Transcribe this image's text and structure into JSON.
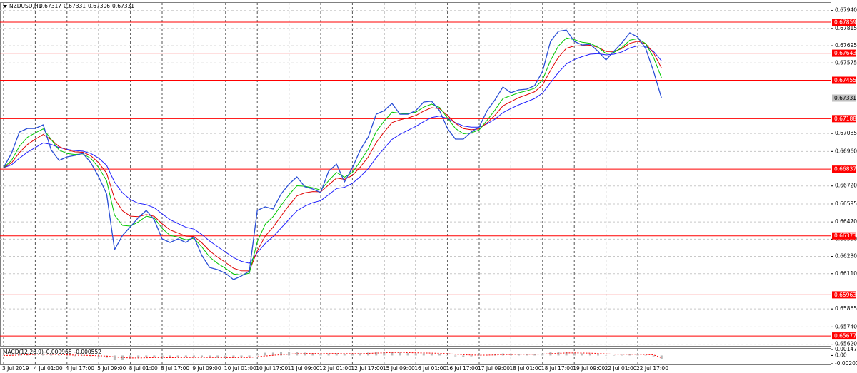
{
  "chart_data": {
    "type": "line",
    "symbol": "NZDUSD,H1",
    "ohlc": [
      0.67317,
      0.67331,
      0.67306,
      0.67331
    ],
    "categories": [
      "3 Jul 2019",
      null,
      null,
      null,
      "4 Jul 01:00",
      null,
      null,
      null,
      "4 Jul 17:00",
      null,
      null,
      null,
      "5 Jul 09:00",
      null,
      null,
      null,
      "8 Jul 01:00",
      null,
      null,
      null,
      "8 Jul 17:00",
      null,
      null,
      null,
      "9 Jul 09:00",
      null,
      null,
      null,
      "10 Jul 01:00",
      null,
      null,
      null,
      "10 Jul 17:00",
      null,
      null,
      null,
      "11 Jul 09:00",
      null,
      null,
      null,
      "12 Jul 01:00",
      null,
      null,
      null,
      "12 Jul 17:00",
      null,
      null,
      null,
      "15 Jul 09:00",
      null,
      null,
      null,
      "16 Jul 01:00",
      null,
      null,
      null,
      "16 Jul 17:00",
      null,
      null,
      null,
      "17 Jul 09:00",
      null,
      null,
      null,
      "18 Jul 01:00",
      null,
      null,
      null,
      "18 Jul 17:00",
      null,
      null,
      null,
      "19 Jul 09:00",
      null,
      null,
      null,
      "22 Jul 01:00",
      null,
      null,
      null,
      "22 Jul 17:00",
      null,
      null,
      null
    ],
    "series": [
      {
        "color": "#2a4fd6",
        "width": 1.3,
        "values": [
          0.66847,
          0.66947,
          0.67095,
          0.6712,
          0.6712,
          0.67145,
          0.66971,
          0.66897,
          0.66922,
          0.66932,
          0.66947,
          0.66882,
          0.66783,
          0.66664,
          0.66277,
          0.66376,
          0.66436,
          0.665,
          0.6655,
          0.66485,
          0.66352,
          0.66327,
          0.66352,
          0.66327,
          0.66366,
          0.66237,
          0.66153,
          0.66138,
          0.66113,
          0.66069,
          0.66094,
          0.66128,
          0.6655,
          0.66575,
          0.6656,
          0.66664,
          0.66733,
          0.66783,
          0.66714,
          0.66699,
          0.66674,
          0.66823,
          0.66872,
          0.66748,
          0.66847,
          0.66971,
          0.67061,
          0.67219,
          0.67244,
          0.67294,
          0.67219,
          0.67219,
          0.67244,
          0.67304,
          0.67309,
          0.67244,
          0.6712,
          0.67046,
          0.67046,
          0.67095,
          0.6713,
          0.67244,
          0.67319,
          0.67408,
          0.67368,
          0.67388,
          0.67393,
          0.67418,
          0.67517,
          0.67725,
          0.67795,
          0.67804,
          0.67725,
          0.677,
          0.67705,
          0.67656,
          0.67596,
          0.67656,
          0.67715,
          0.67785,
          0.67755,
          0.67676,
          0.67517,
          0.67331
        ]
      },
      {
        "color": "#00c800",
        "width": 1,
        "values": [
          0.66847,
          0.66897,
          0.66996,
          0.67058,
          0.67089,
          0.67117,
          0.67044,
          0.6697,
          0.66946,
          0.66939,
          0.66943,
          0.66912,
          0.66848,
          0.66756,
          0.66517,
          0.66446,
          0.66441,
          0.6647,
          0.6651,
          0.66498,
          0.66425,
          0.66376,
          0.66364,
          0.66345,
          0.66356,
          0.66296,
          0.66225,
          0.66181,
          0.66147,
          0.66108,
          0.66101,
          0.66114,
          0.66332,
          0.66454,
          0.66507,
          0.66585,
          0.66659,
          0.66721,
          0.66718,
          0.66708,
          0.66691,
          0.66757,
          0.66814,
          0.66781,
          0.66814,
          0.66892,
          0.66977,
          0.67098,
          0.67171,
          0.67233,
          0.67226,
          0.67222,
          0.67233,
          0.67268,
          0.67289,
          0.67266,
          0.67193,
          0.6712,
          0.67083,
          0.67089,
          0.6711,
          0.67177,
          0.67248,
          0.67328,
          0.67348,
          0.67368,
          0.67381,
          0.67399,
          0.67458,
          0.67592,
          0.67693,
          0.67749,
          0.67737,
          0.67719,
          0.67712,
          0.67684,
          0.6764,
          0.67648,
          0.67682,
          0.67733,
          0.67744,
          0.6771,
          0.67613,
          0.67472
        ]
      },
      {
        "color": "#e00000",
        "width": 1,
        "values": [
          0.66847,
          0.6688,
          0.66952,
          0.67008,
          0.67045,
          0.67078,
          0.67042,
          0.66994,
          0.6697,
          0.66957,
          0.66954,
          0.6693,
          0.66881,
          0.66809,
          0.66632,
          0.66547,
          0.6651,
          0.66507,
          0.66521,
          0.66509,
          0.66457,
          0.66414,
          0.66393,
          0.66371,
          0.66369,
          0.66325,
          0.66268,
          0.66225,
          0.66188,
          0.66148,
          0.6613,
          0.66129,
          0.66269,
          0.66371,
          0.66434,
          0.66511,
          0.66585,
          0.66651,
          0.66672,
          0.66681,
          0.66679,
          0.66727,
          0.66775,
          0.66766,
          0.66793,
          0.66852,
          0.66922,
          0.67021,
          0.67095,
          0.67161,
          0.6718,
          0.67193,
          0.6721,
          0.67241,
          0.67264,
          0.67257,
          0.67211,
          0.67156,
          0.67119,
          0.67111,
          0.67117,
          0.67159,
          0.67212,
          0.67277,
          0.67307,
          0.67334,
          0.67354,
          0.67375,
          0.67422,
          0.67523,
          0.67614,
          0.67677,
          0.67693,
          0.67695,
          0.67698,
          0.67684,
          0.67655,
          0.67655,
          0.67675,
          0.67712,
          0.67726,
          0.67709,
          0.67645,
          0.6754
        ]
      },
      {
        "color": "#2020ff",
        "width": 1,
        "values": [
          0.66847,
          0.66867,
          0.66913,
          0.66954,
          0.66987,
          0.67019,
          0.67009,
          0.66987,
          0.66974,
          0.66966,
          0.66962,
          0.66946,
          0.66913,
          0.66863,
          0.66746,
          0.66672,
          0.66625,
          0.666,
          0.6659,
          0.66569,
          0.66526,
          0.66486,
          0.66459,
          0.66433,
          0.6642,
          0.66383,
          0.66337,
          0.66297,
          0.6626,
          0.66222,
          0.66196,
          0.66182,
          0.66256,
          0.6632,
          0.66368,
          0.66427,
          0.66488,
          0.66547,
          0.6658,
          0.66604,
          0.66618,
          0.66659,
          0.66702,
          0.66711,
          0.66738,
          0.66785,
          0.6684,
          0.66916,
          0.66982,
          0.67044,
          0.67079,
          0.67107,
          0.67134,
          0.67168,
          0.67196,
          0.67206,
          0.67189,
          0.6716,
          0.67137,
          0.67129,
          0.67129,
          0.67152,
          0.67185,
          0.6723,
          0.67258,
          0.67284,
          0.67306,
          0.67328,
          0.67366,
          0.67438,
          0.67509,
          0.67568,
          0.67599,
          0.67619,
          0.67636,
          0.6764,
          0.67631,
          0.67636,
          0.67652,
          0.67679,
          0.67694,
          0.6769,
          0.67655,
          0.6759
        ]
      }
    ],
    "ylim": [
      0.65608,
      0.67993
    ],
    "yticks": [
      {
        "value": 0.6794,
        "label": "0.67940"
      },
      0.67815,
      0.67695,
      0.67575,
      0.67085,
      {
        "value": 0.6696,
        "label": "0.66960"
      },
      {
        "value": 0.6672,
        "label": "0.66720"
      },
      0.66595,
      {
        "value": 0.6647,
        "label": "0.66470"
      },
      {
        "value": 0.6635,
        "label": "0.66350"
      },
      {
        "value": 0.6623,
        "label": "0.66230"
      },
      {
        "value": 0.6611,
        "label": "0.66110"
      },
      0.65865,
      {
        "value": 0.6574,
        "label": "0.65740"
      },
      {
        "value": 0.6562,
        "label": "0.65620"
      }
    ],
    "grid": true,
    "levels": [
      0.67859,
      0.67643,
      0.67455,
      0.67188,
      0.66837,
      0.66373,
      0.65963,
      0.65677
    ],
    "level_color": "#ff0000",
    "current_price": 0.67331,
    "current_color": "#c0c0c0",
    "macd": {
      "label": "MACD(12,26,9)",
      "main": -0.000968,
      "signal_value": -0.000552,
      "color": "#b8b8b8",
      "signal_color": "#ff0000",
      "histogram": [
        0,
        0.00015,
        0.00042,
        0.00052,
        0.00051,
        0.00049,
        0.00018,
        -9e-05,
        -0.00014,
        -0.00014,
        -0.0001,
        -0.00017,
        -0.00033,
        -0.00054,
        -0.00115,
        -0.00113,
        -0.00092,
        -0.00065,
        -0.0004,
        -0.00036,
        -0.00051,
        -0.00055,
        -0.00048,
        -0.00044,
        -0.00032,
        -0.00044,
        -0.00056,
        -0.00058,
        -0.00057,
        -0.00057,
        -0.00048,
        -0.00034,
        0.00038,
        0.00067,
        0.0007,
        0.00079,
        0.00086,
        0.00087,
        0.00069,
        0.00052,
        0.00037,
        0.00049,
        0.00056,
        0.00035,
        0.00038,
        0.00054,
        0.00069,
        0.00091,
        0.00095,
        0.00095,
        0.00074,
        0.00058,
        0.0005,
        0.0005,
        0.00047,
        0.0003,
        2e-05,
        -0.0002,
        -0.00027,
        -0.0002,
        -0.0001,
        0.00013,
        0.00032,
        0.00049,
        0.00045,
        0.00042,
        0.00038,
        0.00036,
        0.00046,
        0.00077,
        0.00092,
        0.00091,
        0.00069,
        0.0005,
        0.00038,
        0.00022,
        5e-05,
        6e-05,
        0.00015,
        0.00027,
        0.00025,
        0.0001,
        -0.00021,
        -0.000968
      ],
      "signal": [
        0,
        3e-05,
        0.00011,
        0.00019,
        0.00025,
        0.0003,
        0.00028,
        0.00021,
        0.00014,
        8e-05,
        4e-05,
        0,
        -7e-05,
        -0.00016,
        -0.00036,
        -0.00051,
        -0.00059,
        -0.0006,
        -0.00056,
        -0.00052,
        -0.00052,
        -0.00053,
        -0.00052,
        -0.0005,
        -0.00046,
        -0.00046,
        -0.00048,
        -0.0005,
        -0.00051,
        -0.00052,
        -0.00051,
        -0.00048,
        -0.00031,
        -0.00011,
        5e-05,
        0.0002,
        0.00033,
        0.00044,
        0.00049,
        0.0005,
        0.00047,
        0.00047,
        0.00049,
        0.00046,
        0.00044,
        0.00046,
        0.00051,
        0.00059,
        0.00066,
        0.00072,
        0.00072,
        0.00069,
        0.00065,
        0.00062,
        0.00059,
        0.00053,
        0.00043,
        0.0003,
        0.00019,
        0.00011,
        7e-05,
        8e-05,
        0.00013,
        0.0002,
        0.00025,
        0.00028,
        0.0003,
        0.00031,
        0.00034,
        0.00043,
        0.00053,
        0.00061,
        0.00063,
        0.0006,
        0.00056,
        0.00049,
        0.0004,
        0.00033,
        0.00029,
        0.00029,
        0.00028,
        0.00024,
        0.00015,
        -0.000552
      ],
      "ylim": [
        -0.002018,
        0.001474
      ],
      "yticks": [
        0.001474,
        {
          "value": 0,
          "label": "0.00"
        },
        -0.002018
      ]
    }
  }
}
